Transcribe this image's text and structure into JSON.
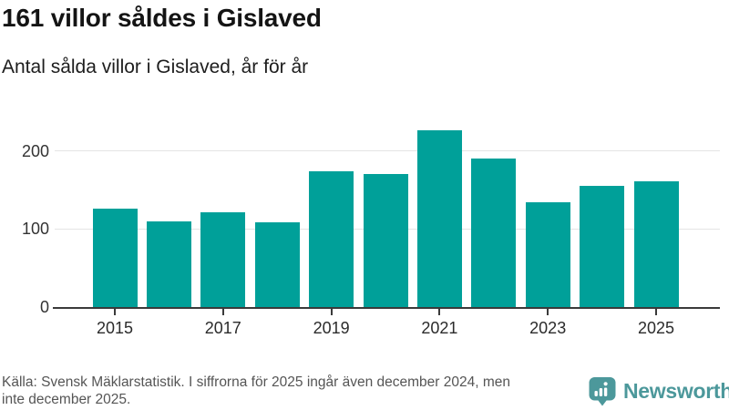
{
  "header": {
    "title": "161 villor såldes i Gislaved",
    "subtitle": "Antal sålda villor i Gislaved, år för år"
  },
  "chart_data": {
    "type": "bar",
    "title": "161 villor såldes i Gislaved",
    "subtitle": "Antal sålda villor i Gislaved, år för år",
    "categories": [
      "2015",
      "2016",
      "2017",
      "2018",
      "2019",
      "2020",
      "2021",
      "2022",
      "2023",
      "2024",
      "2025"
    ],
    "values": [
      126,
      110,
      121,
      108,
      174,
      170,
      227,
      190,
      134,
      155,
      161
    ],
    "xlabel": "",
    "ylabel": "",
    "ylim": [
      0,
      230
    ],
    "y_ticks": [
      0,
      100,
      200
    ],
    "x_tick_labels": [
      "2015",
      "2017",
      "2019",
      "2021",
      "2023",
      "2025"
    ],
    "grid": "horizontal",
    "legend": "none",
    "bar_color": "#00a099"
  },
  "footer": {
    "source_lines": [
      "Källa: Svensk Mäklarstatistik. I siffrorna för 2025 ingår även december 2024, men",
      "inte december 2025."
    ],
    "brand": "Newsworthy",
    "brand_color": "#4c989b",
    "logo_icon": "bar-chart-speech-bubble-icon"
  }
}
